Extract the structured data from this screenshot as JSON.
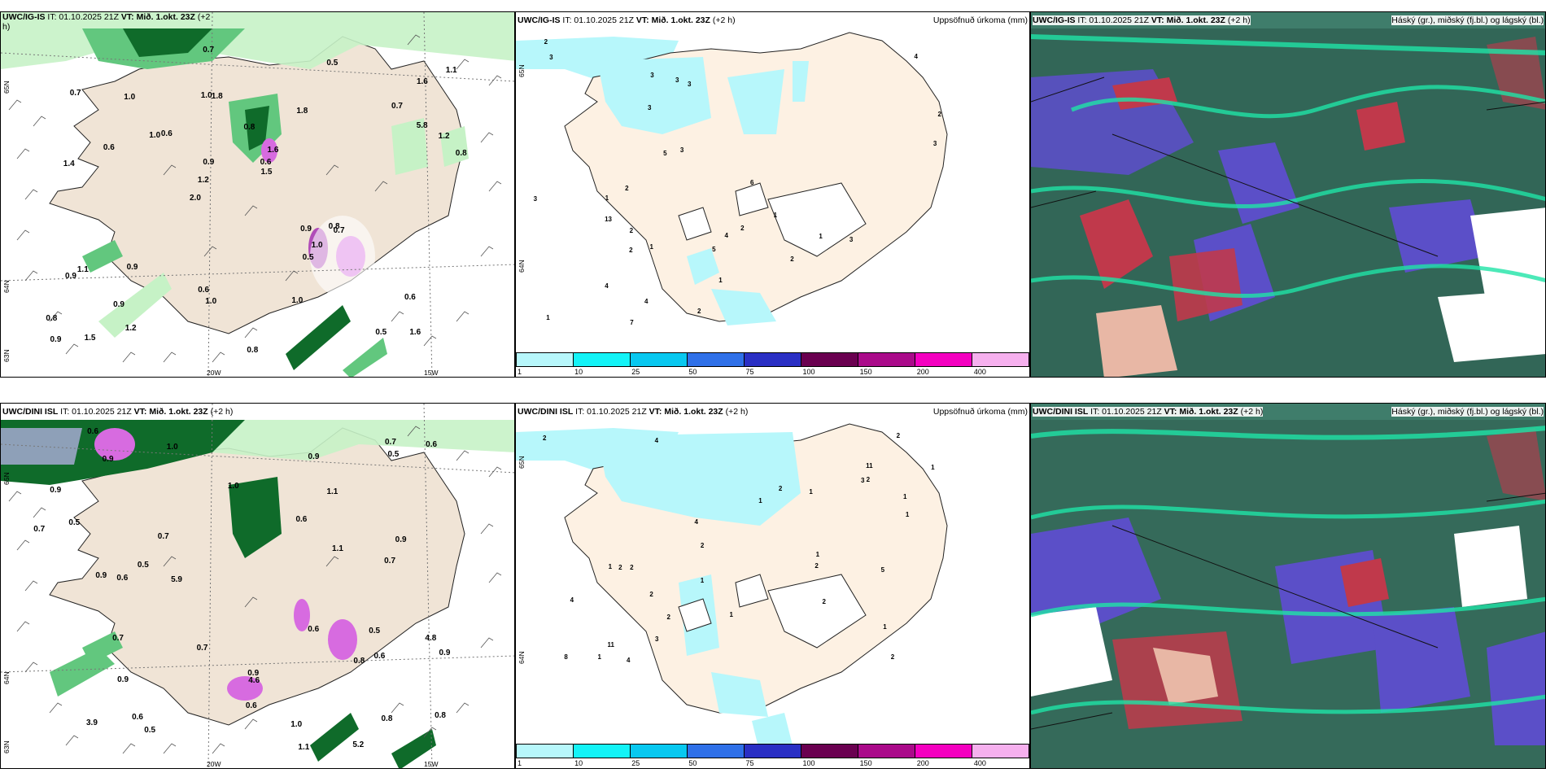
{
  "rows": [
    {
      "left": {
        "header_model": "UWC/IG-IS",
        "header_it": " IT: 01.10.2025 21Z ",
        "header_vt_label": "VT:",
        "header_vt": " Mið. 1.okt. 23Z",
        "header_lead": " (+2",
        "header_lead2": "h)",
        "lat_labels": [
          "65N",
          "64N",
          "63N"
        ],
        "lon_labels": [
          "20W",
          "15W"
        ],
        "numbers": [
          "1.6",
          "1.4",
          "1.6",
          "2.0",
          "1.8",
          "1.5",
          "1.0",
          "0.8",
          "1.1",
          "0.6",
          "0.8",
          "0.9",
          "1.8",
          "1.6",
          "0.7",
          "0.7",
          "0.7",
          "0.8",
          "0.9",
          "5.8",
          "1.2",
          "0.6",
          "0.9",
          "1.0",
          "0.5",
          "0.9",
          "0.5",
          "0.6",
          "0.8",
          "0.8",
          "1.0",
          "0.6",
          "0.5",
          "1.2",
          "1.2",
          "0.6",
          "0.9",
          "1.0",
          "1.5",
          "0.9",
          "0.7",
          "1.1",
          "1.0",
          "1.0"
        ]
      },
      "middle": {
        "header_model": "UWC/IG-IS",
        "header_it": " IT: 01.10.2025 21Z ",
        "header_vt_label": "VT:",
        "header_vt": " Mið. 1.okt. 23Z",
        "header_lead": " (+2 h)",
        "title_right": "Uppsöfnuð úrkoma (mm)",
        "lat_labels": [
          "65N",
          "64N"
        ],
        "numbers": [
          "3",
          "2",
          "3",
          "4",
          "2",
          "2",
          "3",
          "1",
          "1",
          "1",
          "2",
          "6",
          "7",
          "13",
          "4",
          "5",
          "5",
          "4",
          "3",
          "3",
          "3",
          "1",
          "4",
          "2",
          "1",
          "2",
          "2",
          "3",
          "2",
          "3",
          "1",
          "3"
        ]
      },
      "right": {
        "header_model": "UWC/IG-IS",
        "header_it": " IT: 01.10.2025 21Z ",
        "header_vt_label": "VT:",
        "header_vt": " Mið. 1.okt. 23Z",
        "header_lead": " (+2 h)",
        "title_right": "Háský (gr.), miðský (fj.bl.) og lágský (bl.)"
      }
    },
    {
      "left": {
        "header_model": "UWC/DINI ISL",
        "header_it": " IT: 01.10.2025 21Z ",
        "header_vt_label": "VT:",
        "header_vt": " Mið. 1.okt. 23Z",
        "header_lead": " (+2 h)",
        "header_lead2": "",
        "lat_labels": [
          "65N",
          "64N",
          "63N"
        ],
        "lon_labels": [
          "20W",
          "15W"
        ],
        "numbers": [
          "4.8",
          "5.2",
          "4.6",
          "3.9",
          "0.9",
          "0.7",
          "1.0",
          "1.1",
          "1.1",
          "0.7",
          "0.6",
          "0.5",
          "0.7",
          "1.1",
          "0.5",
          "0.9",
          "0.9",
          "0.6",
          "0.9",
          "1.0",
          "0.5",
          "0.5",
          "0.8",
          "0.9",
          "0.6",
          "0.6",
          "0.8",
          "0.7",
          "0.7",
          "0.5",
          "0.6",
          "0.9",
          "0.8",
          "1.0",
          "0.9",
          "0.6",
          "0.9",
          "0.7",
          "5.9",
          "0.6",
          "0.6"
        ]
      },
      "middle": {
        "header_model": "UWC/DINI ISL",
        "header_it": " IT: 01.10.2025 21Z ",
        "header_vt_label": "VT:",
        "header_vt": " Mið. 1.okt. 23Z",
        "header_lead": " (+2 h)",
        "title_right": "Uppsöfnuð úrkoma (mm)",
        "lat_labels": [
          "65N",
          "64N"
        ],
        "numbers": [
          "8",
          "2",
          "2",
          "2",
          "2",
          "3",
          "4",
          "1",
          "1",
          "4",
          "5",
          "11",
          "11",
          "2",
          "2",
          "4",
          "2",
          "2",
          "3",
          "1",
          "1",
          "1",
          "1",
          "1",
          "1",
          "1",
          "1",
          "2",
          "2",
          "4",
          "2",
          "1",
          "2"
        ]
      },
      "right": {
        "header_model": "UWC/DINI ISL",
        "header_it": " IT: 01.10.2025 21Z ",
        "header_vt_label": "VT:",
        "header_vt": " Mið. 1.okt. 23Z",
        "header_lead": " (+2 h)",
        "title_right": "Háský (gr.), miðský (fj.bl.) og lágský (bl.)"
      }
    }
  ],
  "colorbar": {
    "ticks": [
      "1",
      "10",
      "25",
      "50",
      "75",
      "100",
      "150",
      "200",
      "400"
    ],
    "colors": [
      "#b7f7fb",
      "#13f3f7",
      "#08c8f0",
      "#2f70e8",
      "#2a2fc4",
      "#6a0050",
      "#aa0a8a",
      "#f400c0",
      "#f6b0ee"
    ]
  },
  "colors": {
    "land": "#fdf1e3",
    "sea": "#ffffff",
    "precip_light": "#c6f2c6",
    "precip_mid": "#62c77e",
    "precip_dark": "#0f6b2a",
    "precip_heavy": "#d76be0",
    "mid_precip": "#b7f7fb",
    "cloud_high": "#2e5d4f",
    "cloud_mid": "#5b4fc8",
    "cloud_low": "#c0394b",
    "cloud_edge": "#1fe3a6"
  }
}
